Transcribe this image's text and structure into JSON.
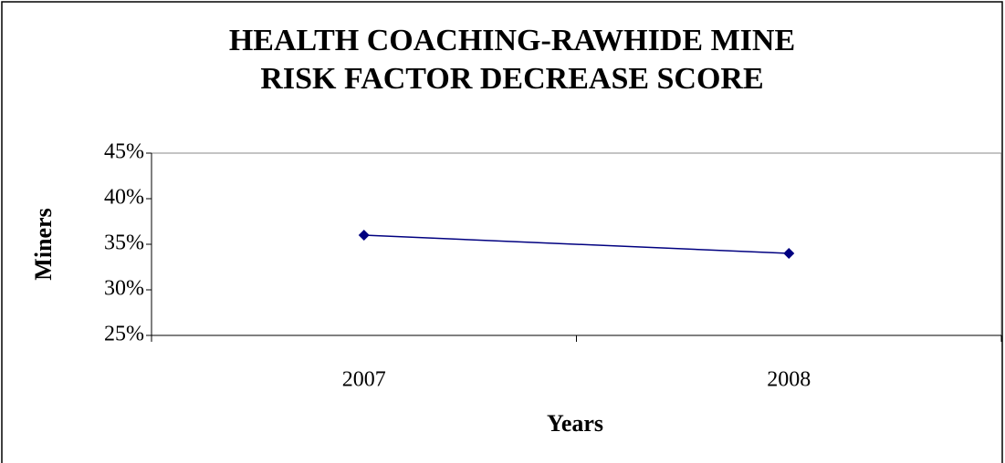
{
  "chart_data": {
    "type": "line",
    "title": [
      "HEALTH COACHING-RAWHIDE MINE",
      "RISK FACTOR DECREASE SCORE"
    ],
    "x_label": "Years",
    "y_label": "Miners",
    "categories": [
      "2007",
      "2008"
    ],
    "values": [
      36,
      34
    ],
    "color": "#000080",
    "ylim": [
      25,
      45
    ],
    "yticks": [
      {
        "value": 25,
        "label": "25%"
      },
      {
        "value": 30,
        "label": "30%"
      },
      {
        "value": 35,
        "label": "35%"
      },
      {
        "value": 40,
        "label": "40%"
      },
      {
        "value": 45,
        "label": "45%"
      }
    ],
    "grid": false
  }
}
